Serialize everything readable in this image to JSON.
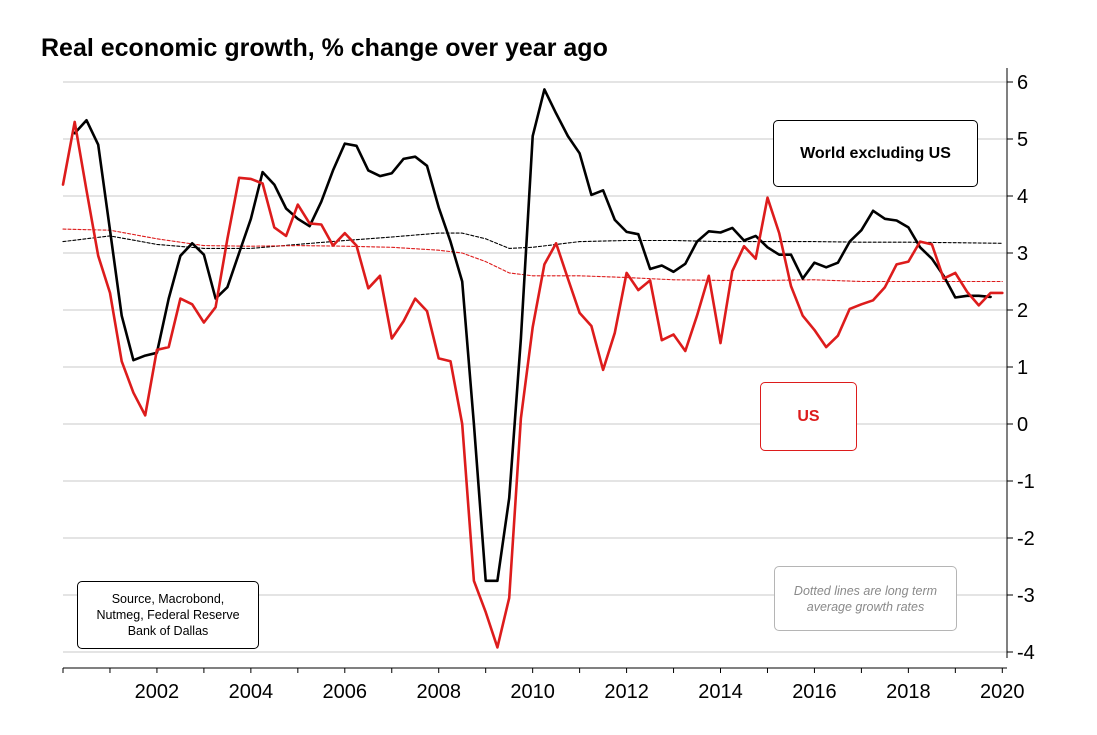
{
  "chart_data": {
    "type": "line",
    "title": "Real economic growth, % change over year ago",
    "y_axis_position": "right",
    "ylim": [
      -4,
      6
    ],
    "xlim": [
      2000.0,
      2020.1
    ],
    "y_ticks": [
      6,
      5,
      4,
      3,
      2,
      1,
      0,
      -1,
      -2,
      -3,
      -4
    ],
    "x_ticks": [
      2002,
      2004,
      2006,
      2008,
      2010,
      2012,
      2014,
      2016,
      2018,
      2020
    ],
    "grid": "horizontal",
    "colors": {
      "world": "#000000",
      "us": "#dd1c1c",
      "grid": "#c8c8c8"
    },
    "series": [
      {
        "name": "World excluding US",
        "style": "solid",
        "x": [
          2000.25,
          2000.5,
          2000.75,
          2001.0,
          2001.25,
          2001.5,
          2001.75,
          2002.0,
          2002.25,
          2002.5,
          2002.75,
          2003.0,
          2003.25,
          2003.5,
          2003.75,
          2004.0,
          2004.25,
          2004.5,
          2004.75,
          2005.0,
          2005.25,
          2005.5,
          2005.75,
          2006.0,
          2006.25,
          2006.5,
          2006.75,
          2007.0,
          2007.25,
          2007.5,
          2007.75,
          2008.0,
          2008.25,
          2008.5,
          2008.75,
          2009.0,
          2009.25,
          2009.5,
          2009.75,
          2010.0,
          2010.25,
          2010.5,
          2010.75,
          2011.0,
          2011.25,
          2011.5,
          2011.75,
          2012.0,
          2012.25,
          2012.5,
          2012.75,
          2013.0,
          2013.25,
          2013.5,
          2013.75,
          2014.0,
          2014.25,
          2014.5,
          2014.75,
          2015.0,
          2015.25,
          2015.5,
          2015.75,
          2016.0,
          2016.25,
          2016.5,
          2016.75,
          2017.0,
          2017.25,
          2017.5,
          2017.75,
          2018.0,
          2018.25,
          2018.5,
          2018.75,
          2019.0,
          2019.25,
          2019.5,
          2019.75
        ],
        "y": [
          5.1,
          5.33,
          4.9,
          3.4,
          1.9,
          1.12,
          1.2,
          1.25,
          2.2,
          2.95,
          3.17,
          2.97,
          2.2,
          2.4,
          3.0,
          3.6,
          4.42,
          4.2,
          3.78,
          3.6,
          3.47,
          3.9,
          4.45,
          4.92,
          4.88,
          4.45,
          4.35,
          4.4,
          4.65,
          4.69,
          4.53,
          3.8,
          3.2,
          2.5,
          0.0,
          -2.75,
          -2.75,
          -1.3,
          1.5,
          5.05,
          5.87,
          5.45,
          5.05,
          4.75,
          4.02,
          4.1,
          3.58,
          3.37,
          3.33,
          2.72,
          2.78,
          2.67,
          2.81,
          3.2,
          3.38,
          3.36,
          3.44,
          3.22,
          3.3,
          3.1,
          2.97,
          2.97,
          2.55,
          2.83,
          2.75,
          2.83,
          3.2,
          3.4,
          3.74,
          3.6,
          3.57,
          3.45,
          3.1,
          2.9,
          2.6,
          2.22,
          2.25,
          2.25,
          2.23
        ]
      },
      {
        "name": "US",
        "style": "solid",
        "x": [
          2000.0,
          2000.25,
          2000.5,
          2000.75,
          2001.0,
          2001.25,
          2001.5,
          2001.75,
          2002.0,
          2002.25,
          2002.5,
          2002.75,
          2003.0,
          2003.25,
          2003.5,
          2003.75,
          2004.0,
          2004.25,
          2004.5,
          2004.75,
          2005.0,
          2005.25,
          2005.5,
          2005.75,
          2006.0,
          2006.25,
          2006.5,
          2006.75,
          2007.0,
          2007.25,
          2007.5,
          2007.75,
          2008.0,
          2008.25,
          2008.5,
          2008.75,
          2009.0,
          2009.25,
          2009.5,
          2009.75,
          2010.0,
          2010.25,
          2010.5,
          2010.75,
          2011.0,
          2011.25,
          2011.5,
          2011.75,
          2012.0,
          2012.25,
          2012.5,
          2012.75,
          2013.0,
          2013.25,
          2013.5,
          2013.75,
          2014.0,
          2014.25,
          2014.5,
          2014.75,
          2015.0,
          2015.25,
          2015.5,
          2015.75,
          2016.0,
          2016.25,
          2016.5,
          2016.75,
          2017.0,
          2017.25,
          2017.5,
          2017.75,
          2018.0,
          2018.25,
          2018.5,
          2018.75,
          2019.0,
          2019.25,
          2019.5,
          2019.75,
          2020.0
        ],
        "y": [
          4.2,
          5.3,
          4.1,
          2.95,
          2.3,
          1.1,
          0.55,
          0.15,
          1.3,
          1.35,
          2.2,
          2.1,
          1.78,
          2.05,
          3.25,
          4.32,
          4.3,
          4.22,
          3.45,
          3.3,
          3.85,
          3.52,
          3.5,
          3.13,
          3.35,
          3.13,
          2.38,
          2.6,
          1.5,
          1.8,
          2.2,
          1.98,
          1.15,
          1.1,
          0.0,
          -2.75,
          -3.3,
          -3.92,
          -3.05,
          0.1,
          1.7,
          2.8,
          3.17,
          2.55,
          1.95,
          1.72,
          0.95,
          1.6,
          2.65,
          2.35,
          2.52,
          1.47,
          1.57,
          1.28,
          1.9,
          2.6,
          1.42,
          2.68,
          3.12,
          2.9,
          3.97,
          3.35,
          2.42,
          1.9,
          1.65,
          1.35,
          1.55,
          2.02,
          2.1,
          2.17,
          2.4,
          2.8,
          2.85,
          3.2,
          3.15,
          2.55,
          2.65,
          2.32,
          2.08,
          2.3,
          2.3
        ]
      },
      {
        "name": "World excluding US long term average",
        "style": "dotted",
        "x": [
          2000.0,
          2001.0,
          2002.0,
          2003.0,
          2004.0,
          2005.0,
          2006.0,
          2007.0,
          2008.0,
          2008.5,
          2009.0,
          2009.5,
          2010.0,
          2011.0,
          2012.0,
          2013.0,
          2014.0,
          2015.0,
          2016.0,
          2017.0,
          2018.0,
          2019.0,
          2020.0
        ],
        "y": [
          3.2,
          3.3,
          3.15,
          3.08,
          3.08,
          3.15,
          3.22,
          3.28,
          3.35,
          3.35,
          3.25,
          3.08,
          3.1,
          3.2,
          3.22,
          3.22,
          3.2,
          3.2,
          3.2,
          3.19,
          3.19,
          3.18,
          3.17
        ]
      },
      {
        "name": "US long term average",
        "style": "dotted",
        "x": [
          2000.0,
          2001.0,
          2002.0,
          2003.0,
          2004.0,
          2005.0,
          2006.0,
          2007.0,
          2008.0,
          2008.5,
          2009.0,
          2009.5,
          2010.0,
          2011.0,
          2012.0,
          2013.0,
          2014.0,
          2015.0,
          2016.0,
          2017.0,
          2018.0,
          2019.0,
          2020.0
        ],
        "y": [
          3.42,
          3.4,
          3.25,
          3.13,
          3.12,
          3.13,
          3.12,
          3.1,
          3.05,
          3.0,
          2.85,
          2.65,
          2.6,
          2.6,
          2.57,
          2.53,
          2.52,
          2.52,
          2.53,
          2.5,
          2.5,
          2.5,
          2.5
        ]
      }
    ],
    "annotations": {
      "legend_world": "World excluding US",
      "legend_us": "US",
      "source_lines": [
        "Source, Macrobond,",
        "Nutmeg, Federal Reserve",
        "Bank of Dallas"
      ],
      "note_lines": [
        "Dotted lines are long term",
        "average growth rates"
      ]
    }
  }
}
